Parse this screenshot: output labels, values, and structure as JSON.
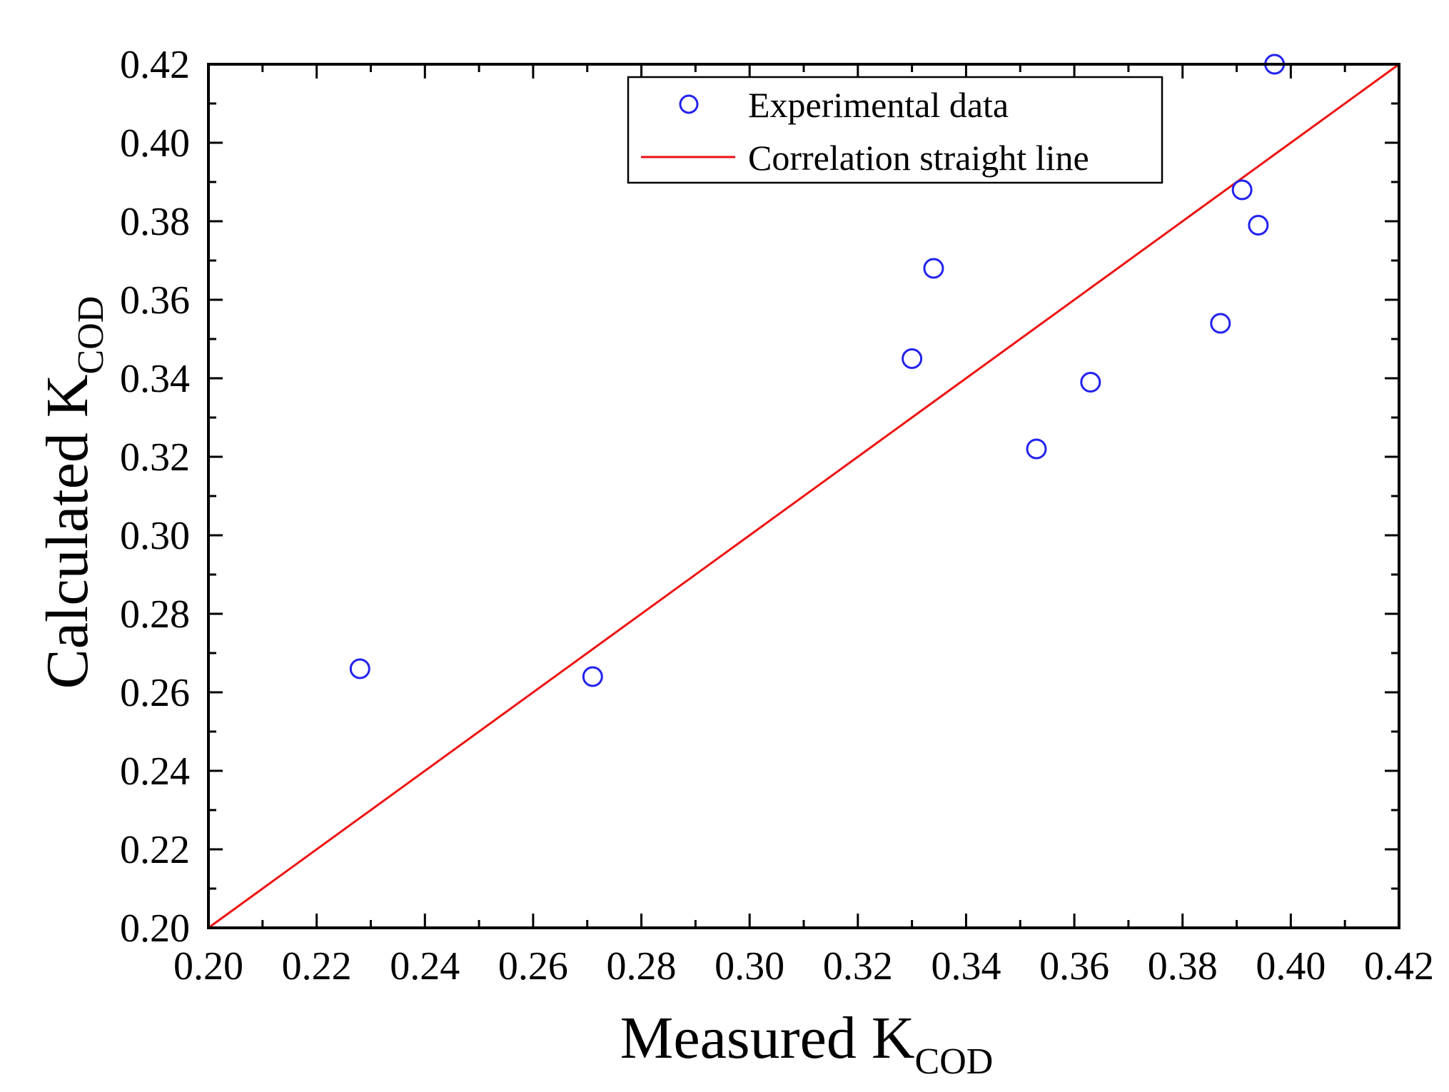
{
  "chart_data": {
    "type": "scatter",
    "title": "",
    "xlabel": "Measured K",
    "xlabel_subscript": "COD",
    "ylabel": "Calculated K",
    "ylabel_subscript": "COD",
    "xlim": [
      0.2,
      0.42
    ],
    "ylim": [
      0.2,
      0.42
    ],
    "xticks": [
      "0.20",
      "0.22",
      "0.24",
      "0.26",
      "0.28",
      "0.30",
      "0.32",
      "0.34",
      "0.36",
      "0.38",
      "0.40",
      "0.42"
    ],
    "yticks": [
      "0.20",
      "0.22",
      "0.24",
      "0.26",
      "0.28",
      "0.30",
      "0.32",
      "0.34",
      "0.36",
      "0.38",
      "0.40",
      "0.42"
    ],
    "tick_values": [
      0.2,
      0.22,
      0.24,
      0.26,
      0.28,
      0.3,
      0.32,
      0.34,
      0.36,
      0.38,
      0.4,
      0.42
    ],
    "grid": false,
    "legend_position": "top-right",
    "series": [
      {
        "name": "Experimental data",
        "kind": "scatter",
        "marker": "open-circle",
        "color": "#2222ee",
        "points": [
          {
            "x": 0.228,
            "y": 0.266
          },
          {
            "x": 0.271,
            "y": 0.264
          },
          {
            "x": 0.33,
            "y": 0.345
          },
          {
            "x": 0.334,
            "y": 0.368
          },
          {
            "x": 0.353,
            "y": 0.322
          },
          {
            "x": 0.363,
            "y": 0.339
          },
          {
            "x": 0.387,
            "y": 0.354
          },
          {
            "x": 0.391,
            "y": 0.388
          },
          {
            "x": 0.394,
            "y": 0.379
          },
          {
            "x": 0.397,
            "y": 0.42
          }
        ]
      },
      {
        "name": "Correlation straight line",
        "kind": "line",
        "color": "#ee1111",
        "points": [
          {
            "x": 0.2,
            "y": 0.2
          },
          {
            "x": 0.42,
            "y": 0.42
          }
        ]
      }
    ]
  }
}
